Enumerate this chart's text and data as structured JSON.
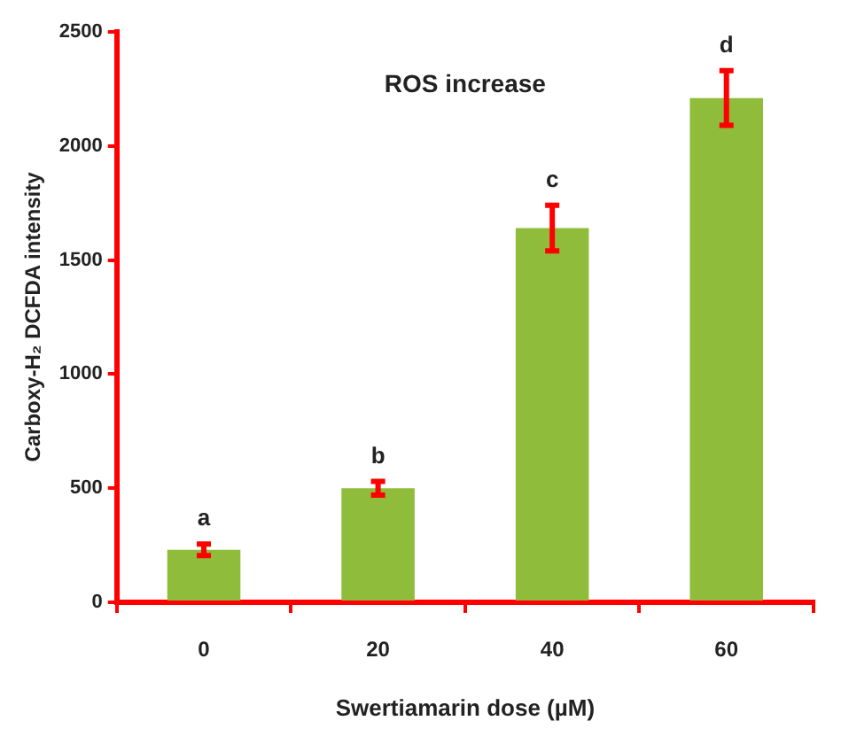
{
  "chart_data": {
    "type": "bar",
    "title": "ROS increase",
    "xlabel": "Swertiamarin dose (µM)",
    "ylabel": "Carboxy-H₂ DCFDA intensity",
    "categories": [
      "0",
      "20",
      "40",
      "60"
    ],
    "values": [
      230,
      500,
      1640,
      2210
    ],
    "errors": [
      25,
      30,
      100,
      120
    ],
    "color": "#8fbc3a",
    "ylim": [
      0,
      2500
    ],
    "yticks": [
      0,
      500,
      1000,
      1500,
      2000,
      2500
    ],
    "grid": false,
    "legend": false,
    "annotations": [
      "a",
      "b",
      "c",
      "d"
    ]
  }
}
